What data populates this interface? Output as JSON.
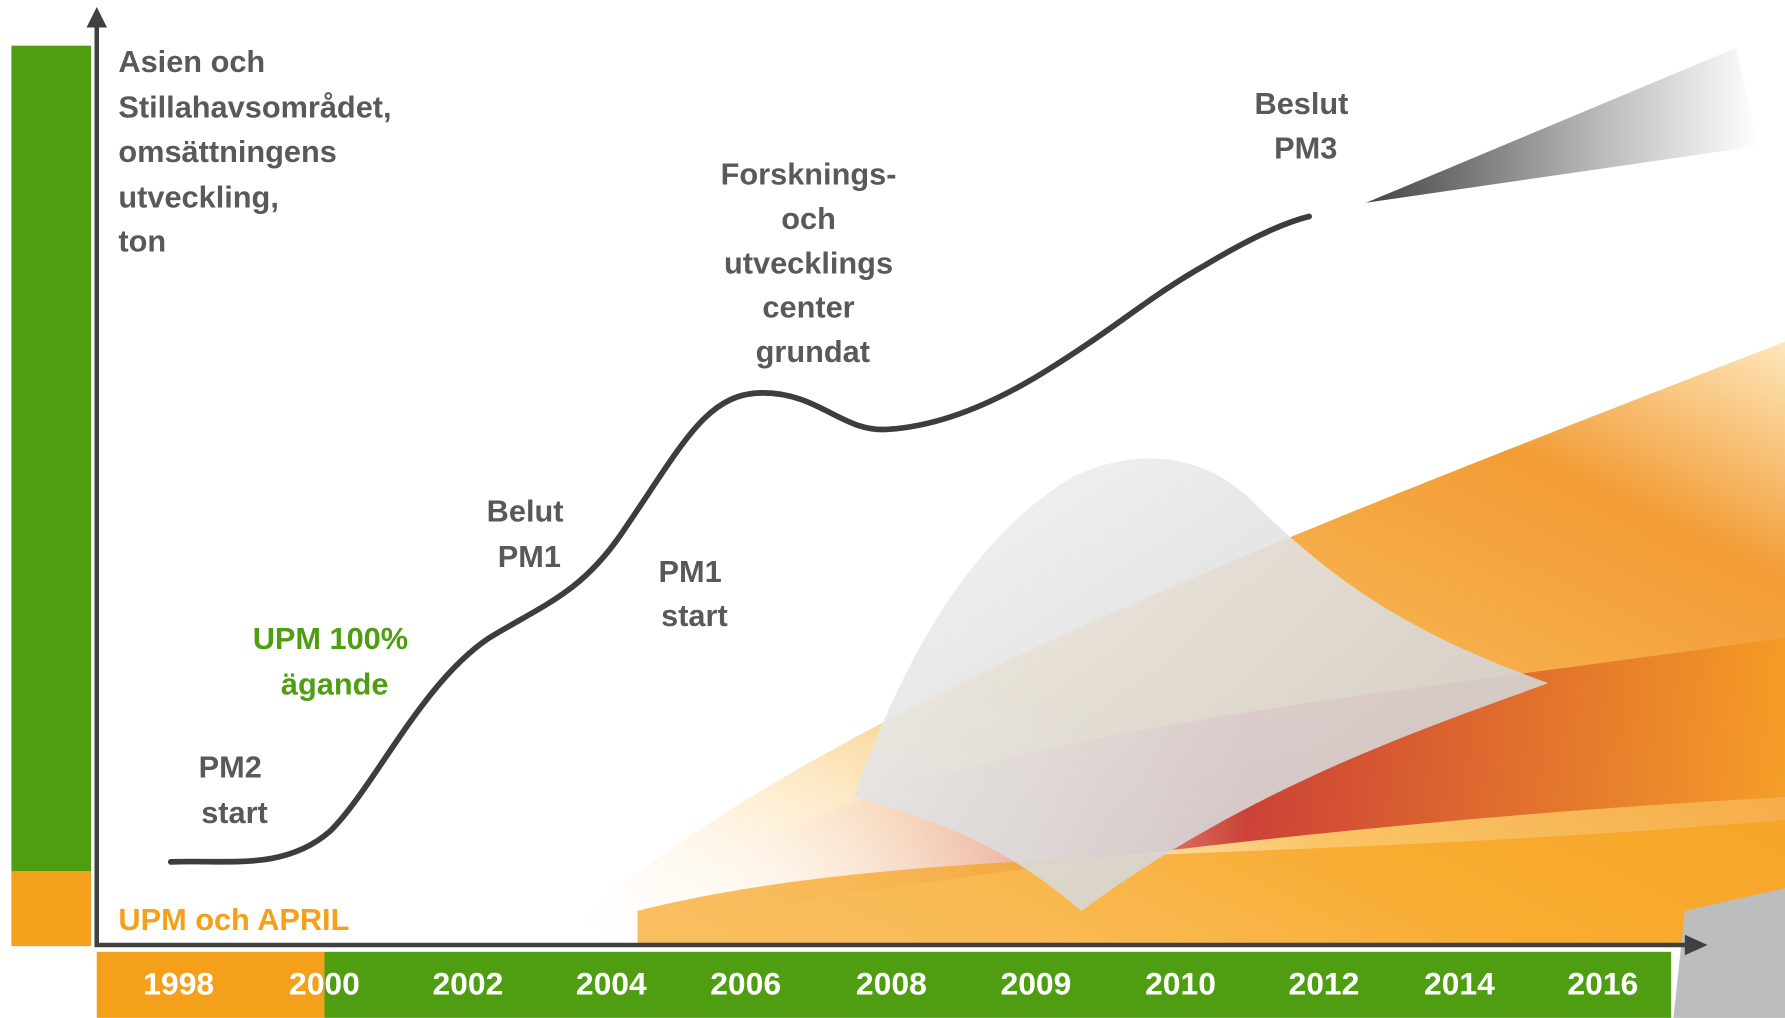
{
  "y_axis_label": [
    "Asien och",
    "Stillahavsområdet,",
    "omsättningens",
    "utveckling,",
    "ton"
  ],
  "timeline": [
    "1998",
    "2000",
    "2002",
    "2004",
    "2006",
    "2008",
    "2009",
    "2010",
    "2012",
    "2014",
    "2016"
  ],
  "eras": {
    "upm_april": "UPM  och APRIL",
    "upm_owned": [
      "UPM 100%",
      "ägande"
    ]
  },
  "milestones": {
    "pm2_start": [
      "PM2",
      "start"
    ],
    "decision_pm1": [
      "Belut",
      "PM1"
    ],
    "pm1_start": [
      "PM1",
      "start"
    ],
    "rd_center": [
      "Forsknings-",
      "och",
      "utvecklings",
      "center",
      "grundat"
    ],
    "decision_pm3": [
      "Beslut",
      "PM3"
    ]
  }
}
